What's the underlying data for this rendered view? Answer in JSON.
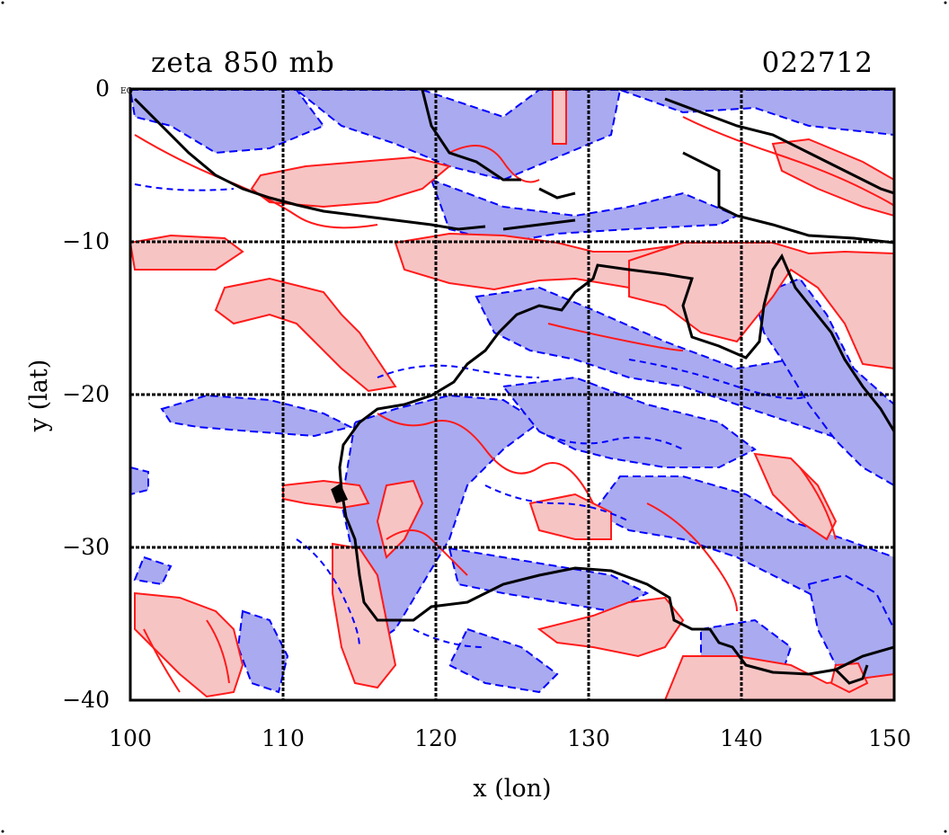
{
  "plot": {
    "title_left": "zeta 850 mb",
    "title_right": "022712",
    "corner_label": "EQ",
    "xlabel": "x (lon)",
    "ylabel": "y (lat)",
    "x_ticks": [
      "100",
      "110",
      "120",
      "130",
      "140",
      "150"
    ],
    "y_ticks": [
      "0",
      "−10",
      "−20",
      "−30",
      "−40"
    ],
    "x_range": [
      100,
      150
    ],
    "y_range": [
      -40,
      0
    ],
    "grid": "on",
    "colors": {
      "positive_line": "#ff1a1a",
      "positive_fill": "#f7c4c4",
      "negative_line": "#0000ff",
      "negative_fill": "#aaaaf0",
      "coastline": "#000000",
      "grid": "#000000"
    }
  }
}
